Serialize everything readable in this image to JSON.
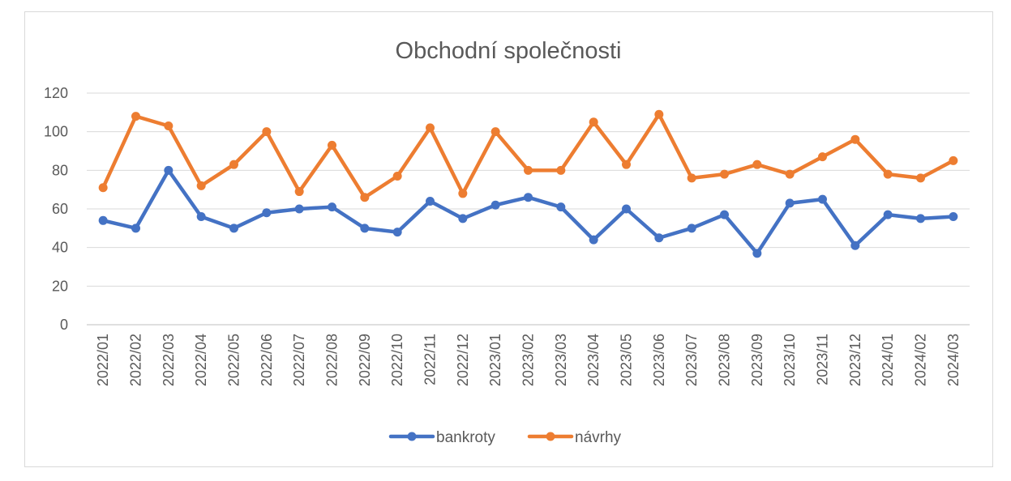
{
  "chart_data": {
    "type": "line",
    "title": "Obchodní společnosti",
    "xlabel": "",
    "ylabel": "",
    "ylim": [
      0,
      120
    ],
    "yticks": [
      0,
      20,
      40,
      60,
      80,
      100,
      120
    ],
    "grid": true,
    "legend_position": "bottom",
    "categories": [
      "2022/01",
      "2022/02",
      "2022/03",
      "2022/04",
      "2022/05",
      "2022/06",
      "2022/07",
      "2022/08",
      "2022/09",
      "2022/10",
      "2022/11",
      "2022/12",
      "2023/01",
      "2023/02",
      "2023/03",
      "2023/04",
      "2023/05",
      "2023/06",
      "2023/07",
      "2023/08",
      "2023/09",
      "2023/10",
      "2023/11",
      "2023/12",
      "2024/01",
      "2024/02",
      "2024/03"
    ],
    "series": [
      {
        "name": "bankroty",
        "color": "#4472c4",
        "values": [
          54,
          50,
          80,
          56,
          50,
          58,
          60,
          61,
          50,
          48,
          64,
          55,
          62,
          66,
          61,
          44,
          60,
          45,
          50,
          57,
          37,
          63,
          65,
          41,
          57,
          55,
          56
        ]
      },
      {
        "name": "návrhy",
        "color": "#ed7d31",
        "values": [
          71,
          108,
          103,
          72,
          83,
          100,
          69,
          93,
          66,
          77,
          102,
          68,
          100,
          80,
          80,
          105,
          83,
          109,
          76,
          78,
          83,
          78,
          87,
          96,
          78,
          76,
          85
        ]
      }
    ]
  }
}
